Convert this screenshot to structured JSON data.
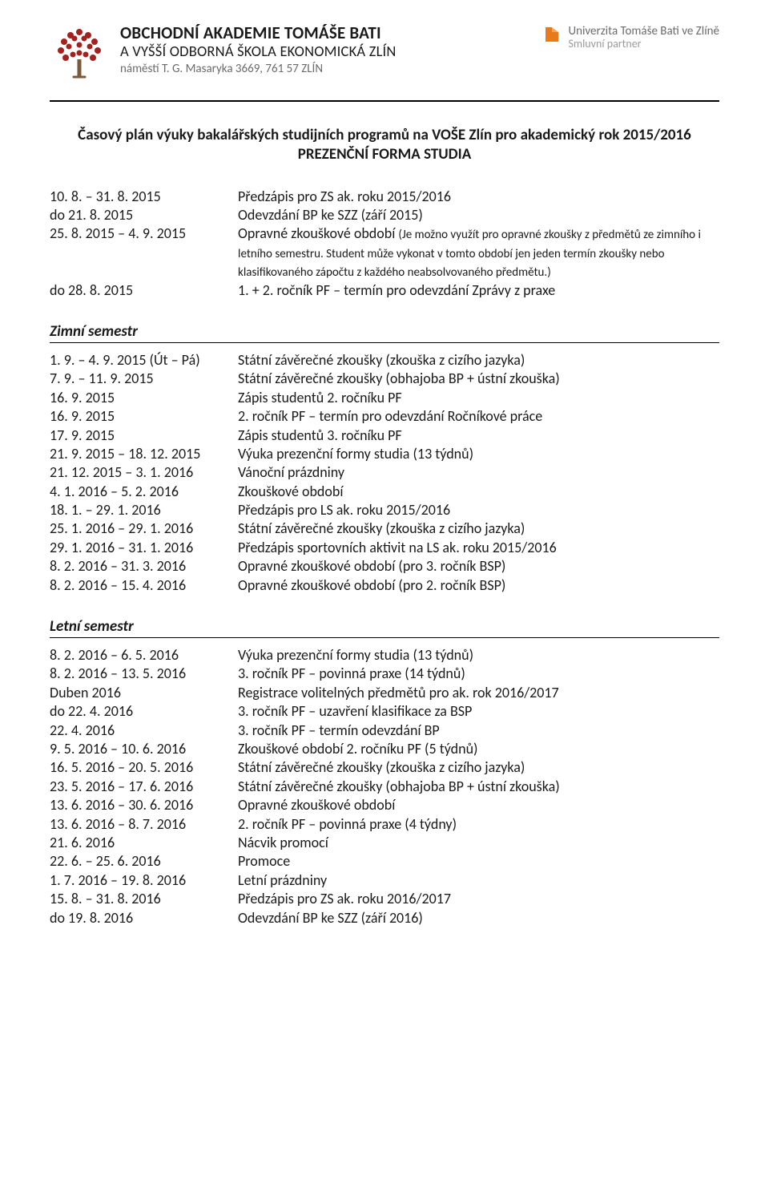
{
  "colors": {
    "text": "#1a1a1a",
    "muted": "#6b6b6b",
    "muted2": "#9a9a9a",
    "treeRed": "#a2221f",
    "treeBrown": "#7a5a3a",
    "utbOrange": "#e77a1b",
    "hr": "#000000",
    "background": "#ffffff"
  },
  "typography": {
    "body_family": "Calibri",
    "title_size_pt": 14,
    "body_size_pt": 13.5,
    "small_size_pt": 11
  },
  "header": {
    "school_line1": "OBCHODNÍ AKADEMIE TOMÁŠE BATI",
    "school_line2": "A VYŠŠÍ ODBORNÁ ŠKOLA EKONOMICKÁ ZLÍN",
    "school_line3": "náměstí T. G. Masaryka 3669, 761 57  ZLÍN",
    "utb_line1": "Univerzita Tomáše Bati ve Zlíně",
    "utb_line2": "Smluvní partner"
  },
  "title": {
    "line1": "Časový plán výuky bakalářských studijních programů na VOŠE Zlín pro akademický rok 2015/2016",
    "line2": "PREZENČNÍ FORMA STUDIA"
  },
  "intro_rows": [
    {
      "date": "10. 8. – 31. 8. 2015",
      "desc": "Předzápis pro ZS ak. roku 2015/2016"
    },
    {
      "date": "do 21. 8. 2015",
      "desc": "Odevzdání BP ke SZZ (září 2015)"
    },
    {
      "date": "25. 8. 2015 – 4. 9. 2015",
      "desc_lead": "Opravné zkouškové období ",
      "desc_small": "(Je možno využít pro opravné zkoušky z předmětů ze zimního i letního semestru. Student může vykonat v tomto období jen jeden termín zkoušky nebo klasifikovaného zápočtu z každého neabsolvovaného předmětu.)"
    },
    {
      "date": "do 28. 8. 2015",
      "desc": "1. + 2. ročník PF – termín pro odevzdání Zprávy z praxe"
    }
  ],
  "sections": [
    {
      "heading": "Zimní semestr",
      "rows": [
        {
          "date": "1. 9. – 4. 9. 2015 (Út – Pá)",
          "desc": "Státní závěrečné zkoušky (zkouška z cizího jazyka)"
        },
        {
          "date": "7. 9. – 11. 9. 2015",
          "desc": "Státní závěrečné zkoušky (obhajoba BP + ústní zkouška)"
        },
        {
          "date": "16. 9. 2015",
          "desc": "Zápis studentů 2. ročníku PF"
        },
        {
          "date": "16. 9. 2015",
          "desc": "2. ročník PF – termín pro odevzdání Ročníkové práce"
        },
        {
          "date": "17. 9. 2015",
          "desc": "Zápis studentů 3. ročníku PF"
        },
        {
          "date": "21. 9. 2015 – 18. 12. 2015",
          "desc": "Výuka prezenční formy studia (13 týdnů)"
        },
        {
          "date": "21. 12. 2015 – 3. 1. 2016",
          "desc": "Vánoční prázdniny"
        },
        {
          "date": "4. 1. 2016 – 5. 2. 2016",
          "desc": "Zkouškové období"
        },
        {
          "date": "18. 1. – 29. 1. 2016",
          "desc": "Předzápis pro LS ak. roku 2015/2016"
        },
        {
          "date": "25. 1. 2016 – 29. 1. 2016",
          "desc": "Státní závěrečné zkoušky (zkouška z cizího jazyka)"
        },
        {
          "date": "29. 1. 2016 – 31. 1. 2016",
          "desc": "Předzápis sportovních aktivit na LS ak. roku 2015/2016"
        },
        {
          "date": "8. 2. 2016 – 31. 3. 2016",
          "desc": "Opravné zkouškové období (pro 3. ročník BSP)"
        },
        {
          "date": "8. 2. 2016 – 15. 4. 2016",
          "desc": "Opravné zkouškové období (pro 2. ročník BSP)"
        }
      ]
    },
    {
      "heading": "Letní semestr",
      "rows": [
        {
          "date": "8. 2. 2016 – 6. 5. 2016",
          "desc": "Výuka prezenční formy studia (13 týdnů)"
        },
        {
          "date": "8. 2. 2016 – 13. 5. 2016",
          "desc": "3. ročník PF – povinná praxe (14 týdnů)"
        },
        {
          "date": "Duben 2016",
          "desc": "Registrace volitelných předmětů pro ak. rok 2016/2017"
        },
        {
          "date": "do 22. 4. 2016",
          "desc": "3. ročník PF – uzavření klasifikace za BSP"
        },
        {
          "date": "22. 4. 2016",
          "desc": "3. ročník PF – termín odevzdání BP"
        },
        {
          "date": "9. 5. 2016 – 10. 6. 2016",
          "desc": "Zkouškové období 2. ročníku PF (5 týdnů)"
        },
        {
          "date": "16. 5. 2016 – 20. 5. 2016",
          "desc": "Státní závěrečné zkoušky (zkouška z cizího jazyka)"
        },
        {
          "date": "23. 5. 2016 – 17. 6. 2016",
          "desc": "Státní závěrečné zkoušky (obhajoba BP + ústní zkouška)"
        },
        {
          "date": "13. 6. 2016 – 30. 6. 2016",
          "desc": "Opravné zkouškové období"
        },
        {
          "date": "13. 6. 2016 – 8. 7. 2016",
          "desc": "2. ročník PF – povinná praxe (4 týdny)"
        },
        {
          "date": "21. 6. 2016",
          "desc": "Nácvik promocí"
        },
        {
          "date": "22. 6. – 25. 6. 2016",
          "desc": "Promoce"
        },
        {
          "date": "1. 7. 2016 – 19. 8. 2016",
          "desc": "Letní prázdniny"
        },
        {
          "date": "15. 8. – 31. 8. 2016",
          "desc": "Předzápis pro ZS ak. roku 2016/2017"
        },
        {
          "date": "do 19. 8. 2016",
          "desc": "Odevzdání BP ke SZZ (září 2016)"
        }
      ]
    }
  ]
}
